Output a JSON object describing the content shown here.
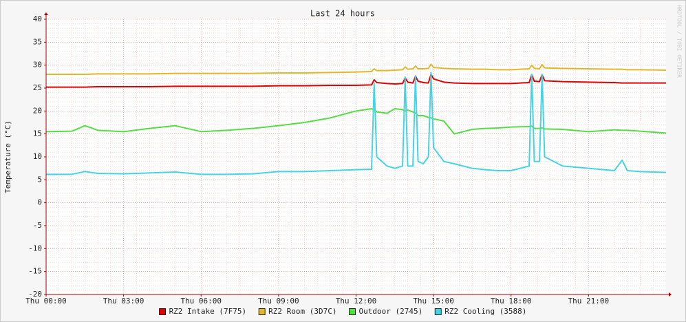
{
  "chart_data": {
    "type": "line",
    "title": "Last 24 hours",
    "y_label": "Temperature (°C)",
    "watermark": "RRDTOOL / TOBI OETIKER",
    "x": [
      0,
      1,
      1.5,
      2,
      3,
      4,
      5,
      6,
      7,
      8,
      9,
      10,
      11,
      12,
      12.6,
      12.7,
      12.8,
      13.2,
      13.5,
      13.8,
      13.9,
      14.0,
      14.2,
      14.3,
      14.4,
      14.6,
      14.8,
      14.9,
      15.0,
      15.4,
      15.8,
      16.5,
      17,
      17.5,
      18,
      18.7,
      18.8,
      18.9,
      19.1,
      19.2,
      19.3,
      20,
      21,
      22,
      22.3,
      22.5,
      23,
      24
    ],
    "xlim": [
      0,
      24
    ],
    "xticks": [
      {
        "value": 0,
        "label": "Thu 00:00"
      },
      {
        "value": 3,
        "label": "Thu 03:00"
      },
      {
        "value": 6,
        "label": "Thu 06:00"
      },
      {
        "value": 9,
        "label": "Thu 09:00"
      },
      {
        "value": 12,
        "label": "Thu 12:00"
      },
      {
        "value": 15,
        "label": "Thu 15:00"
      },
      {
        "value": 18,
        "label": "Thu 18:00"
      },
      {
        "value": 21,
        "label": "Thu 21:00"
      }
    ],
    "ylim": [
      -20,
      40
    ],
    "yticks": [
      -20,
      -15,
      -10,
      -5,
      0,
      5,
      10,
      15,
      20,
      25,
      30,
      35,
      40
    ],
    "grid": true,
    "series": [
      {
        "name": "RZ2 Intake (7F75)",
        "color": "#e00000",
        "values": [
          25.2,
          25.2,
          25.2,
          25.3,
          25.3,
          25.3,
          25.4,
          25.4,
          25.4,
          25.4,
          25.5,
          25.5,
          25.6,
          25.6,
          25.7,
          26.8,
          26.2,
          26,
          25.9,
          26,
          27.2,
          26.3,
          26.1,
          27.6,
          26.5,
          26.2,
          26.1,
          28,
          27,
          26.3,
          26.1,
          26,
          26,
          26,
          26,
          26.2,
          27.9,
          26.5,
          26.4,
          27.9,
          26.6,
          26.4,
          26.3,
          26.2,
          26.1,
          26.1,
          26.1,
          26.1
        ]
      },
      {
        "name": "RZ2 Room (3D7C)",
        "color": "#e2b72a",
        "values": [
          28,
          28,
          28,
          28.1,
          28.1,
          28.1,
          28.2,
          28.2,
          28.2,
          28.2,
          28.3,
          28.3,
          28.4,
          28.5,
          28.6,
          29.2,
          28.8,
          28.8,
          28.9,
          29,
          29.6,
          29.1,
          29.2,
          29.8,
          29.2,
          29.2,
          29.3,
          30.2,
          29.5,
          29.3,
          29.2,
          29.1,
          29.1,
          29,
          29,
          29.2,
          30,
          29.3,
          29.2,
          30.1,
          29.4,
          29.3,
          29.2,
          29.1,
          29.1,
          29,
          29,
          28.9
        ]
      },
      {
        "name": "Outdoor (2745)",
        "color": "#55dd44",
        "values": [
          15.5,
          15.6,
          16.8,
          15.8,
          15.5,
          16.2,
          16.8,
          15.5,
          15.8,
          16.2,
          16.8,
          17.5,
          18.5,
          20,
          20.5,
          20.3,
          19.8,
          19.5,
          20.5,
          20.3,
          20,
          20.2,
          19.8,
          19.5,
          19,
          19,
          18.6,
          18.5,
          18.3,
          17.8,
          15,
          16,
          16.2,
          16.3,
          16.5,
          16.6,
          16.7,
          16.2,
          16.2,
          16.3,
          16.1,
          16,
          15.5,
          15.9,
          15.8,
          15.8,
          15.6,
          15.2
        ]
      },
      {
        "name": "RZ2 Cooling (3588)",
        "color": "#44d4e4",
        "values": [
          6.2,
          6.2,
          6.8,
          6.4,
          6.3,
          6.5,
          6.7,
          6.2,
          6.2,
          6.3,
          6.8,
          6.8,
          7,
          7.2,
          7.3,
          26,
          10,
          8,
          7.5,
          8,
          27.4,
          8,
          8,
          27.7,
          9,
          8.5,
          10,
          28.4,
          12,
          9,
          8.5,
          7.5,
          7.2,
          7,
          7,
          8,
          28,
          9,
          9,
          28,
          10,
          8,
          7.5,
          7,
          9.3,
          7,
          6.8,
          6.6
        ]
      }
    ]
  }
}
